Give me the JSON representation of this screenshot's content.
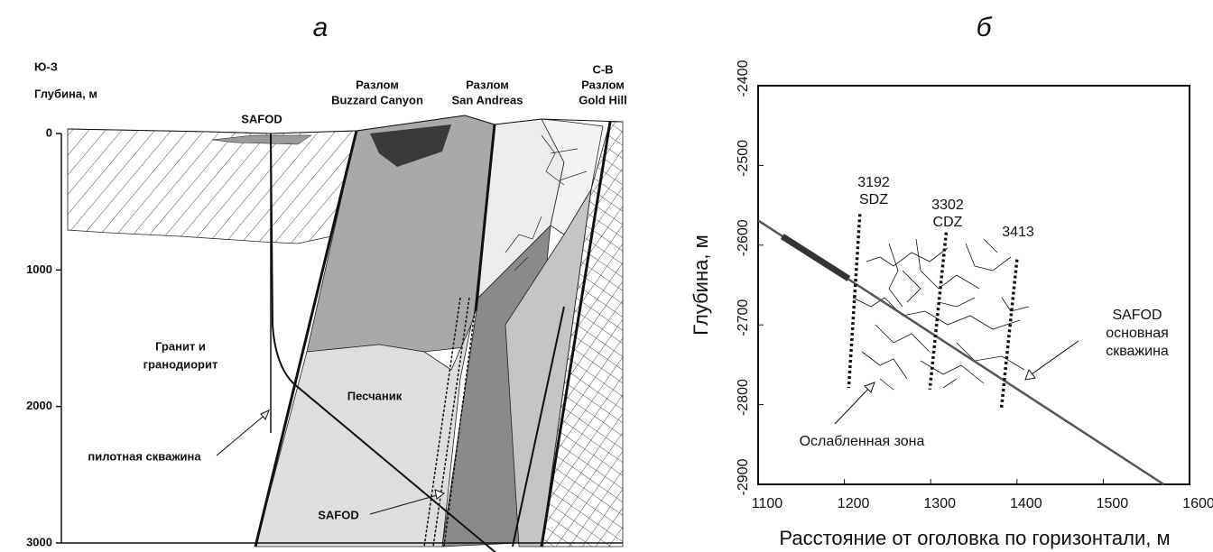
{
  "panel_a": {
    "title": "а",
    "sw": "Ю-З",
    "ne": "С-В",
    "y_label": "Глубина, м",
    "ylim": [
      0,
      3000
    ],
    "yticks": [
      0,
      1000,
      2000,
      3000
    ],
    "safod_top": "SAFOD",
    "fault_bc": [
      "Разлом",
      "Buzzard Canyon"
    ],
    "fault_sa": [
      "Разлом",
      "San Andreas"
    ],
    "fault_gh": [
      "Разлом",
      "Gold Hill"
    ],
    "granite": [
      "Гранит и",
      "гранодиорит"
    ],
    "sandstone": "Песчаник",
    "pilot": "пилотная скважина",
    "safod_bottom": "SAFOD"
  },
  "chart_data": {
    "type": "line",
    "title": "б",
    "x_label": "Расстояние от оголовка по горизонтали, м",
    "y_label": "Глубина, м",
    "xlim": [
      1100,
      1600
    ],
    "ylim": [
      -2900,
      -2400
    ],
    "xticks": [
      1100,
      1200,
      1300,
      1400,
      1500,
      1600
    ],
    "yticks": [
      -2400,
      -2500,
      -2600,
      -2700,
      -2800,
      -2900
    ],
    "series": [
      {
        "x": [
          1100,
          1570
        ],
        "values": [
          -2569,
          -2900
        ],
        "color": "#555555",
        "style": "solid"
      },
      {
        "x": [
          1128,
          1205
        ],
        "values": [
          -2589,
          -2642
        ],
        "color": "#333333",
        "style": "thick"
      },
      {
        "name": "3192",
        "label": "SDZ",
        "x": [
          1218,
          1205
        ],
        "values": [
          -2561,
          -2779
        ],
        "color": "#111111",
        "style": "dotted"
      },
      {
        "name": "3302",
        "label": "CDZ",
        "x": [
          1318,
          1299
        ],
        "values": [
          -2584,
          -2781
        ],
        "color": "#111111",
        "style": "dotted"
      },
      {
        "name": "3413",
        "x": [
          1400,
          1382
        ],
        "values": [
          -2618,
          -2804
        ],
        "color": "#111111",
        "style": "dotted"
      }
    ],
    "annotations": {
      "well": [
        "SAFOD",
        "основная",
        "скважина"
      ],
      "weak_zone": "Ослабленная зона"
    }
  }
}
